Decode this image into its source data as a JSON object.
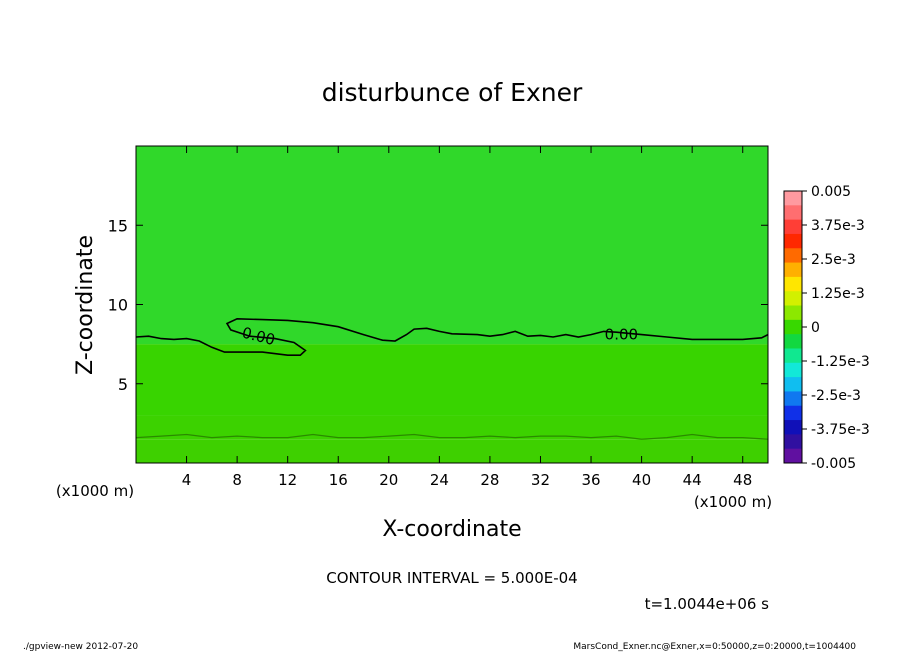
{
  "chart_data": {
    "type": "contour",
    "title": "disturbunce of Exner",
    "xlabel": "X-coordinate",
    "ylabel": "Z-coordinate",
    "x_unit_left": "(x1000 m)",
    "x_unit_right": "(x1000 m)",
    "xlim": [
      0,
      50
    ],
    "ylim": [
      0,
      20
    ],
    "xticks": [
      4,
      8,
      12,
      16,
      20,
      24,
      28,
      32,
      36,
      40,
      44,
      48
    ],
    "yticks": [
      5,
      10,
      15
    ],
    "colorbar": {
      "labels": [
        "0.005",
        "3.75e-3",
        "2.5e-3",
        "1.25e-3",
        "0",
        "-1.25e-3",
        "-2.5e-3",
        "-3.75e-3",
        "-0.005"
      ],
      "colors_top_to_bottom": [
        "#ff9aa0",
        "#ff6e70",
        "#ff3e36",
        "#ff2800",
        "#ff6a00",
        "#ffb000",
        "#ffe600",
        "#d2f000",
        "#8ce800",
        "#38d800",
        "#12d840",
        "#10e890",
        "#12e8d8",
        "#10bef0",
        "#1078f0",
        "#1030e8",
        "#1010b8",
        "#3010a0",
        "#6010a0"
      ]
    },
    "fill_bands": [
      {
        "z_from": 0,
        "z_to": 1.5,
        "color": "#3ed000"
      },
      {
        "z_from": 1.5,
        "z_to": 3.0,
        "color": "#3cd200"
      },
      {
        "z_from": 3.0,
        "z_to": 7.5,
        "color": "#38d400"
      },
      {
        "z_from": 7.5,
        "z_to": 20,
        "color": "#30d82a"
      }
    ],
    "contours": [
      {
        "label": "0.00",
        "label_positions": [
          [
            9.6,
            8.0
          ],
          [
            38.4,
            8.1
          ]
        ],
        "points": [
          [
            0,
            7.95
          ],
          [
            1,
            8.0
          ],
          [
            2,
            7.85
          ],
          [
            3,
            7.8
          ],
          [
            4,
            7.85
          ],
          [
            5,
            7.7
          ],
          [
            6,
            7.3
          ],
          [
            7,
            7.0
          ],
          [
            8,
            7.0
          ],
          [
            10,
            7.0
          ],
          [
            12,
            6.8
          ],
          [
            13,
            6.8
          ],
          [
            13.4,
            7.1
          ],
          [
            12.5,
            7.6
          ],
          [
            11,
            7.85
          ],
          [
            9,
            8.0
          ],
          [
            7.5,
            8.4
          ],
          [
            7.2,
            8.8
          ],
          [
            8,
            9.1
          ],
          [
            10,
            9.05
          ],
          [
            12,
            9.0
          ],
          [
            14,
            8.85
          ],
          [
            16,
            8.6
          ],
          [
            18,
            8.1
          ],
          [
            19.5,
            7.75
          ],
          [
            20.5,
            7.7
          ],
          [
            21.4,
            8.1
          ],
          [
            22,
            8.45
          ],
          [
            23,
            8.5
          ],
          [
            24,
            8.3
          ],
          [
            25,
            8.15
          ],
          [
            27,
            8.1
          ],
          [
            28,
            8.0
          ],
          [
            29,
            8.1
          ],
          [
            30,
            8.3
          ],
          [
            31,
            8.0
          ],
          [
            32,
            8.05
          ],
          [
            33,
            7.95
          ],
          [
            34,
            8.1
          ],
          [
            35,
            7.95
          ],
          [
            36,
            8.1
          ],
          [
            37,
            8.3
          ],
          [
            38,
            8.25
          ],
          [
            40,
            8.1
          ],
          [
            42,
            7.95
          ],
          [
            44,
            7.8
          ],
          [
            46,
            7.8
          ],
          [
            48,
            7.8
          ],
          [
            49.5,
            7.9
          ],
          [
            50,
            8.1
          ]
        ]
      },
      {
        "label": "",
        "points": [
          [
            0,
            1.6
          ],
          [
            2,
            1.7
          ],
          [
            4,
            1.8
          ],
          [
            6,
            1.6
          ],
          [
            8,
            1.7
          ],
          [
            10,
            1.6
          ],
          [
            12,
            1.6
          ],
          [
            14,
            1.8
          ],
          [
            16,
            1.6
          ],
          [
            18,
            1.6
          ],
          [
            20,
            1.7
          ],
          [
            22,
            1.8
          ],
          [
            24,
            1.6
          ],
          [
            26,
            1.6
          ],
          [
            28,
            1.7
          ],
          [
            30,
            1.6
          ],
          [
            32,
            1.7
          ],
          [
            34,
            1.7
          ],
          [
            36,
            1.6
          ],
          [
            38,
            1.7
          ],
          [
            40,
            1.5
          ],
          [
            42,
            1.6
          ],
          [
            44,
            1.8
          ],
          [
            46,
            1.6
          ],
          [
            48,
            1.6
          ],
          [
            50,
            1.5
          ]
        ]
      }
    ]
  },
  "annotations": {
    "contour_interval": "CONTOUR INTERVAL = 5.000E-04",
    "time": "t=1.0044e+06 s"
  },
  "footer": {
    "left": "./gpview-new   2012-07-20",
    "right": "MarsCond_Exner.nc@Exner,x=0:50000,z=0:20000,t=1004400"
  }
}
